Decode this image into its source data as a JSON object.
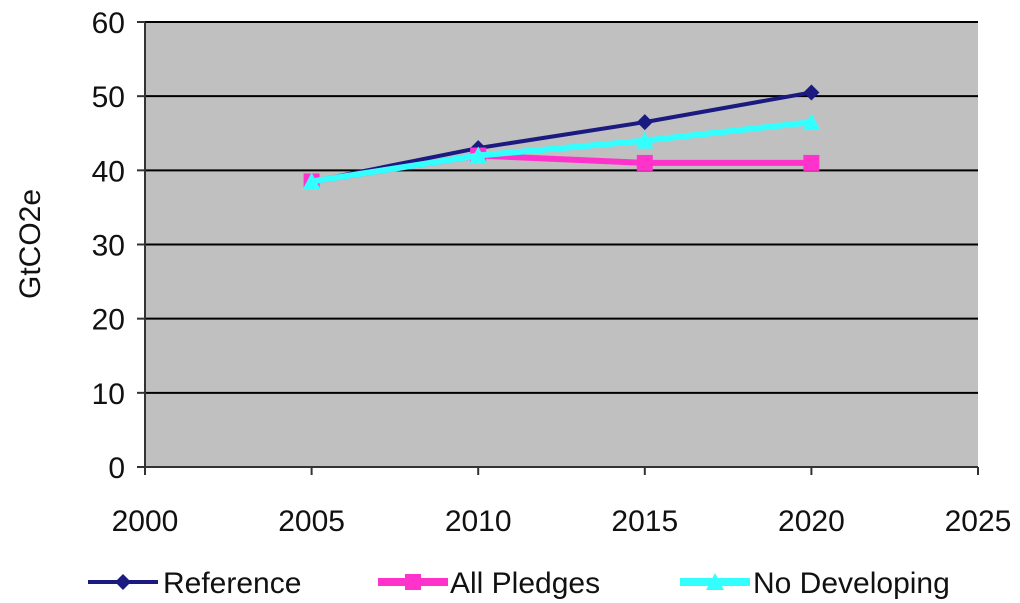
{
  "chart_data": {
    "type": "line",
    "title": "",
    "xlabel": "",
    "ylabel": "GtCO2e",
    "xlim": [
      2000,
      2025
    ],
    "ylim": [
      0,
      60
    ],
    "x_ticks": [
      "2000",
      "2005",
      "2010",
      "2015",
      "2020",
      "2025"
    ],
    "y_ticks": [
      "0",
      "10",
      "20",
      "30",
      "40",
      "50",
      "60"
    ],
    "grid": "horizontal",
    "legend_position": "bottom",
    "plot_background": "#c0c0c0",
    "series": [
      {
        "name": "Reference",
        "color": "#1a1a80",
        "marker": "diamond",
        "x": [
          2005,
          2010,
          2015,
          2020
        ],
        "y": [
          38.5,
          43,
          46.5,
          50.5
        ]
      },
      {
        "name": "All Pledges",
        "color": "#ff33cc",
        "marker": "square",
        "x": [
          2005,
          2010,
          2015,
          2020
        ],
        "y": [
          38.5,
          42,
          41,
          41
        ]
      },
      {
        "name": "No Developing",
        "color": "#33ffff",
        "marker": "triangle",
        "x": [
          2005,
          2010,
          2015,
          2020
        ],
        "y": [
          38.5,
          42,
          44,
          46.5
        ]
      }
    ]
  }
}
